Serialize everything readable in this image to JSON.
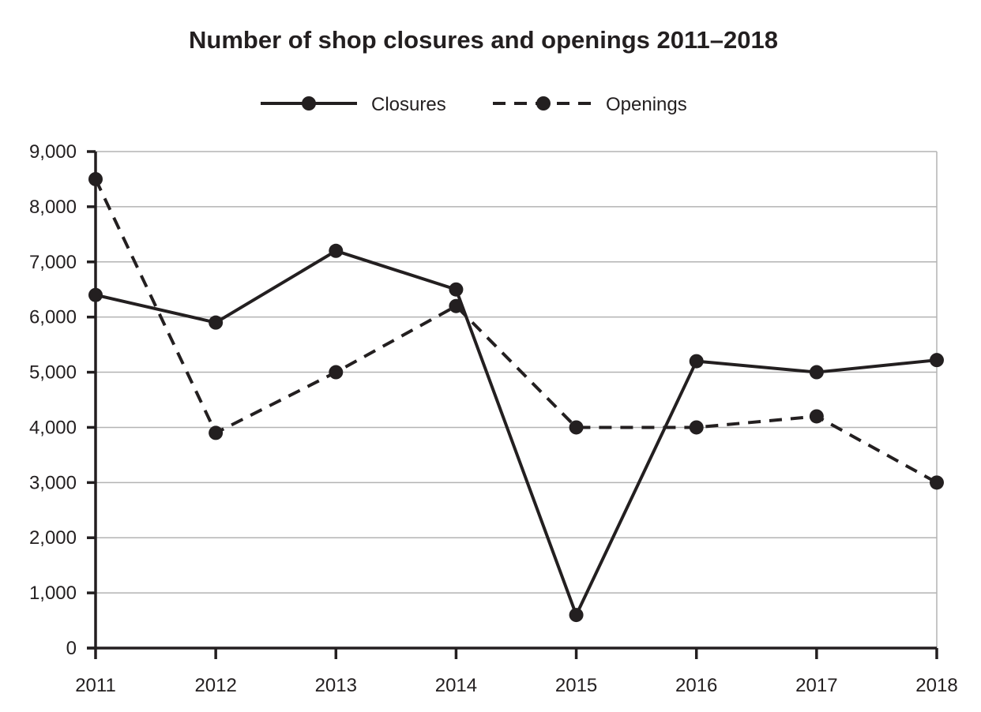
{
  "chart_data": {
    "type": "line",
    "title": "Number of shop closures and openings 2011–2018",
    "xlabel": "",
    "ylabel": "",
    "categories": [
      "2011",
      "2012",
      "2013",
      "2014",
      "2015",
      "2016",
      "2017",
      "2018"
    ],
    "series": [
      {
        "name": "Closures",
        "style": "solid",
        "values": [
          6400,
          5900,
          7200,
          6500,
          600,
          5200,
          5000,
          5220
        ]
      },
      {
        "name": "Openings",
        "style": "dashed",
        "values": [
          8500,
          3900,
          5000,
          6200,
          4000,
          4000,
          4200,
          3000
        ]
      }
    ],
    "ylim": [
      0,
      9000
    ],
    "yticks": [
      0,
      1000,
      2000,
      3000,
      4000,
      5000,
      6000,
      7000,
      8000,
      9000
    ],
    "ytick_labels": [
      "0",
      "1,000",
      "2,000",
      "3,000",
      "4,000",
      "5,000",
      "6,000",
      "7,000",
      "8,000",
      "9,000"
    ],
    "grid": true,
    "legend_position": "top-center",
    "colors": {
      "ink": "#231f20",
      "grid": "#b3b3b3"
    }
  }
}
